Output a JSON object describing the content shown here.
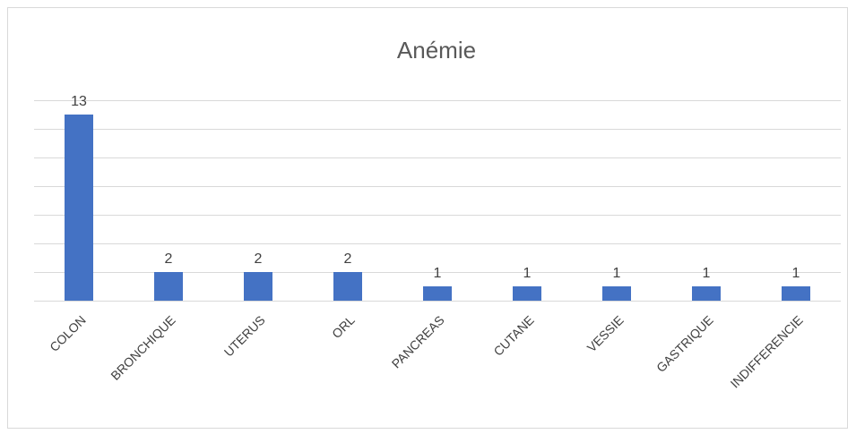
{
  "chart_data": {
    "type": "bar",
    "title": "Anémie",
    "categories": [
      "COLON",
      "BRONCHIQUE",
      "UTERUS",
      "ORL",
      "PANCREAS",
      "CUTANE",
      "VESSIE",
      "GASTRIQUE",
      "INDIFFERENCIE"
    ],
    "values": [
      13,
      2,
      2,
      2,
      1,
      1,
      1,
      1,
      1
    ],
    "color": "#4472c4",
    "ylim": [
      0,
      14
    ],
    "yticks": [
      0,
      2,
      4,
      6,
      8,
      10,
      12,
      14
    ],
    "grid": true
  }
}
